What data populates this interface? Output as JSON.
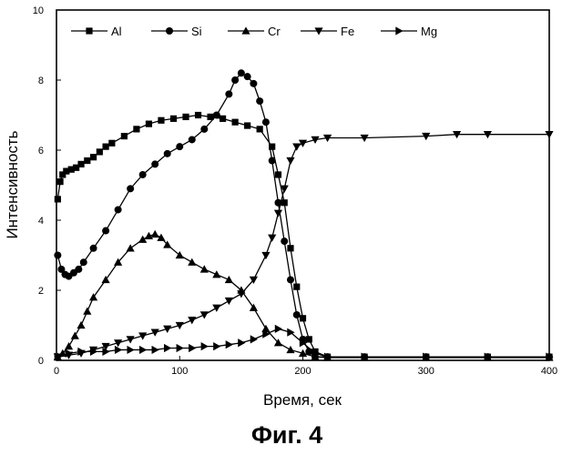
{
  "caption": "Фиг. 4",
  "chart_data": {
    "type": "line",
    "title": "",
    "xlabel": "Время, сек",
    "ylabel": "Интенсивность",
    "xlim": [
      0,
      400
    ],
    "ylim": [
      0,
      10
    ],
    "xticks": [
      0,
      100,
      200,
      300,
      400
    ],
    "yticks": [
      0,
      2,
      4,
      6,
      8,
      10
    ],
    "grid": false,
    "legend_position": "top",
    "series": [
      {
        "name": "Al",
        "marker": "square",
        "x": [
          1,
          3,
          5,
          8,
          12,
          16,
          20,
          25,
          30,
          35,
          40,
          45,
          55,
          65,
          75,
          85,
          95,
          105,
          115,
          125,
          135,
          145,
          155,
          165,
          175,
          180,
          185,
          190,
          195,
          200,
          205,
          210,
          220,
          250,
          300,
          350,
          400
        ],
        "y": [
          4.6,
          5.1,
          5.3,
          5.4,
          5.45,
          5.5,
          5.6,
          5.7,
          5.8,
          5.95,
          6.1,
          6.2,
          6.4,
          6.6,
          6.75,
          6.85,
          6.9,
          6.95,
          7.0,
          6.95,
          6.9,
          6.8,
          6.7,
          6.6,
          6.1,
          5.3,
          4.5,
          3.2,
          2.1,
          1.2,
          0.6,
          0.25,
          0.1,
          0.1,
          0.1,
          0.1,
          0.1
        ]
      },
      {
        "name": "Si",
        "marker": "circle",
        "x": [
          1,
          4,
          7,
          10,
          14,
          18,
          22,
          30,
          40,
          50,
          60,
          70,
          80,
          90,
          100,
          110,
          120,
          130,
          140,
          145,
          150,
          155,
          160,
          165,
          170,
          175,
          180,
          185,
          190,
          195,
          200,
          205,
          210,
          220,
          250,
          300,
          350,
          400
        ],
        "y": [
          3.0,
          2.6,
          2.45,
          2.4,
          2.5,
          2.6,
          2.8,
          3.2,
          3.7,
          4.3,
          4.9,
          5.3,
          5.6,
          5.9,
          6.1,
          6.3,
          6.6,
          7.0,
          7.6,
          8.0,
          8.2,
          8.1,
          7.9,
          7.4,
          6.8,
          5.7,
          4.5,
          3.4,
          2.3,
          1.3,
          0.6,
          0.25,
          0.1,
          0.1,
          0.1,
          0.1,
          0.1,
          0.1
        ]
      },
      {
        "name": "Cr",
        "marker": "triangle-up",
        "x": [
          1,
          5,
          10,
          15,
          20,
          25,
          30,
          40,
          50,
          60,
          70,
          75,
          80,
          85,
          90,
          100,
          110,
          120,
          130,
          140,
          150,
          160,
          170,
          180,
          190,
          200,
          210,
          220,
          250,
          300,
          350,
          400
        ],
        "y": [
          0.1,
          0.2,
          0.4,
          0.7,
          1.0,
          1.4,
          1.8,
          2.3,
          2.8,
          3.2,
          3.45,
          3.55,
          3.6,
          3.5,
          3.3,
          3.0,
          2.8,
          2.6,
          2.45,
          2.3,
          2.0,
          1.5,
          0.9,
          0.5,
          0.3,
          0.2,
          0.1,
          0.08,
          0.08,
          0.08,
          0.08,
          0.08
        ]
      },
      {
        "name": "Fe",
        "marker": "triangle-down",
        "x": [
          1,
          10,
          20,
          30,
          40,
          50,
          60,
          70,
          80,
          90,
          100,
          110,
          120,
          130,
          140,
          150,
          160,
          170,
          175,
          180,
          185,
          190,
          195,
          200,
          210,
          220,
          250,
          300,
          325,
          350,
          400
        ],
        "y": [
          0.1,
          0.15,
          0.2,
          0.3,
          0.4,
          0.5,
          0.6,
          0.7,
          0.8,
          0.9,
          1.0,
          1.15,
          1.3,
          1.5,
          1.7,
          1.9,
          2.3,
          3.0,
          3.5,
          4.2,
          4.9,
          5.7,
          6.1,
          6.2,
          6.3,
          6.35,
          6.35,
          6.4,
          6.45,
          6.45,
          6.45
        ]
      },
      {
        "name": "Mg",
        "marker": "triangle-right",
        "x": [
          1,
          10,
          20,
          30,
          40,
          50,
          60,
          70,
          80,
          90,
          100,
          110,
          120,
          130,
          140,
          150,
          160,
          170,
          180,
          190,
          200,
          210,
          220,
          250,
          300,
          350,
          400
        ],
        "y": [
          0.1,
          0.2,
          0.25,
          0.25,
          0.25,
          0.3,
          0.3,
          0.3,
          0.3,
          0.35,
          0.35,
          0.35,
          0.4,
          0.4,
          0.45,
          0.5,
          0.6,
          0.75,
          0.9,
          0.8,
          0.5,
          0.2,
          0.1,
          0.1,
          0.1,
          0.1,
          0.1
        ]
      }
    ]
  }
}
